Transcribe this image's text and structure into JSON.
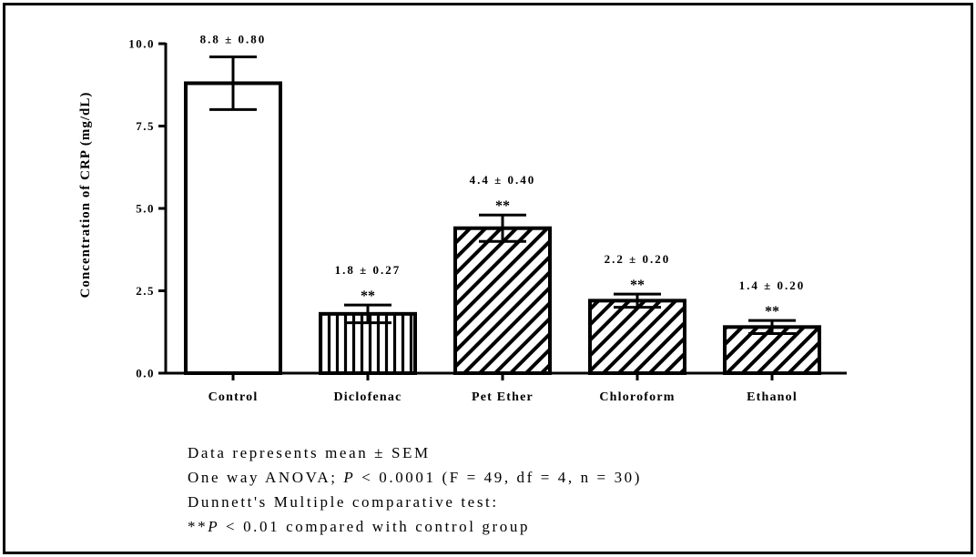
{
  "chart_data": {
    "type": "bar",
    "ylabel": "Concentration of CRP (mg/dL)",
    "xlabel": "",
    "ylim": [
      0,
      10
    ],
    "yticks": [
      "0.0",
      "2.5",
      "5.0",
      "7.5",
      "10.0"
    ],
    "categories": [
      "Control",
      "Diclofenac",
      "Pet Ether",
      "Chloroform",
      "Ethanol"
    ],
    "values": [
      8.8,
      1.8,
      4.4,
      2.2,
      1.4
    ],
    "errors": [
      0.8,
      0.27,
      0.4,
      0.2,
      0.2
    ],
    "value_labels": [
      "8.8 ± 0.80",
      "1.8 ± 0.27",
      "4.4 ± 0.40",
      "2.2 ± 0.20",
      "1.4 ± 0.20"
    ],
    "significance": [
      "",
      "**",
      "**",
      "**",
      "**"
    ],
    "patterns": [
      "none",
      "vertical",
      "diagonal",
      "diagonal",
      "diagonal"
    ],
    "grid": false,
    "colors": {
      "bar_stroke": "#000000",
      "bar_fill": "#ffffff"
    }
  },
  "notes": {
    "line1": "Data represents mean ± SEM",
    "line2_a": "One way ANOVA; ",
    "line2_p": "P",
    "line2_b": " < 0.0001 (F = 49, df = 4, n = 30)",
    "line3": "Dunnett's Multiple comparative test:",
    "line4_a": "**",
    "line4_p": "P",
    "line4_b": " < 0.01 compared with control group"
  }
}
